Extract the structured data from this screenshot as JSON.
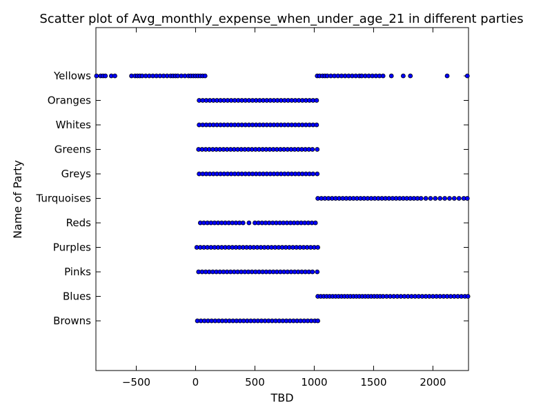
{
  "chart_data": {
    "type": "scatter",
    "title": "Scatter plot of Avg_monthly_expense_when_under_age_21 in different parties",
    "xlabel": "TBD",
    "ylabel": "Name of Party",
    "xlim": [
      -840,
      2300
    ],
    "xticks": [
      -500,
      0,
      500,
      1000,
      1500,
      2000
    ],
    "categories": [
      "Browns",
      "Blues",
      "Pinks",
      "Purples",
      "Reds",
      "Turquoises",
      "Greys",
      "Greens",
      "Whites",
      "Oranges",
      "Yellows"
    ],
    "grid": false,
    "marker_color": "#0000ff",
    "series": [
      {
        "category": "Yellows",
        "x": [
          -835,
          -800,
          -780,
          -760,
          -710,
          -680,
          -540,
          -510,
          -490,
          -470,
          -450,
          -420,
          -390,
          -360,
          -330,
          -300,
          -270,
          -240,
          -210,
          -190,
          -170,
          -150,
          -120,
          -90,
          -60,
          -40,
          -20,
          0,
          20,
          40,
          60,
          80,
          1025,
          1045,
          1070,
          1090,
          1110,
          1140,
          1170,
          1200,
          1230,
          1260,
          1290,
          1320,
          1350,
          1380,
          1400,
          1430,
          1460,
          1490,
          1520,
          1550,
          1580,
          1650,
          1750,
          1810,
          2120,
          2290
        ]
      },
      {
        "category": "Oranges",
        "x": [
          30,
          60,
          90,
          120,
          150,
          180,
          210,
          240,
          270,
          300,
          330,
          360,
          390,
          420,
          450,
          480,
          510,
          540,
          570,
          600,
          630,
          660,
          690,
          720,
          750,
          780,
          810,
          840,
          870,
          900,
          930,
          960,
          990,
          1020
        ]
      },
      {
        "category": "Whites",
        "x": [
          30,
          60,
          90,
          120,
          150,
          180,
          210,
          240,
          270,
          300,
          330,
          360,
          390,
          420,
          450,
          480,
          510,
          540,
          570,
          600,
          630,
          660,
          690,
          720,
          750,
          780,
          810,
          840,
          870,
          900,
          930,
          960,
          990,
          1020
        ]
      },
      {
        "category": "Greens",
        "x": [
          25,
          55,
          85,
          115,
          145,
          175,
          205,
          235,
          265,
          295,
          325,
          355,
          385,
          415,
          445,
          475,
          505,
          535,
          565,
          595,
          625,
          655,
          685,
          715,
          745,
          775,
          805,
          835,
          865,
          895,
          925,
          955,
          985,
          1025
        ]
      },
      {
        "category": "Greys",
        "x": [
          30,
          60,
          90,
          120,
          150,
          180,
          210,
          240,
          270,
          300,
          330,
          360,
          390,
          420,
          450,
          480,
          510,
          540,
          570,
          600,
          630,
          660,
          690,
          720,
          750,
          780,
          810,
          840,
          870,
          900,
          930,
          960,
          990,
          1025
        ]
      },
      {
        "category": "Turquoises",
        "x": [
          1030,
          1060,
          1090,
          1120,
          1150,
          1180,
          1210,
          1240,
          1270,
          1300,
          1330,
          1360,
          1390,
          1420,
          1450,
          1480,
          1510,
          1540,
          1570,
          1600,
          1630,
          1660,
          1690,
          1720,
          1750,
          1780,
          1810,
          1840,
          1870,
          1900,
          1940,
          1980,
          2020,
          2060,
          2100,
          2140,
          2180,
          2220,
          2260,
          2290
        ]
      },
      {
        "category": "Reds",
        "x": [
          40,
          70,
          100,
          130,
          160,
          190,
          220,
          250,
          280,
          310,
          340,
          370,
          400,
          450,
          500,
          530,
          560,
          590,
          620,
          650,
          680,
          710,
          740,
          770,
          800,
          830,
          860,
          890,
          920,
          950,
          980,
          1010
        ]
      },
      {
        "category": "Purples",
        "x": [
          10,
          40,
          70,
          100,
          130,
          160,
          190,
          220,
          250,
          280,
          310,
          340,
          370,
          400,
          430,
          460,
          490,
          520,
          550,
          580,
          610,
          640,
          670,
          700,
          730,
          760,
          790,
          820,
          850,
          880,
          910,
          940,
          970,
          1000,
          1030
        ]
      },
      {
        "category": "Pinks",
        "x": [
          25,
          55,
          85,
          115,
          145,
          175,
          205,
          235,
          265,
          295,
          325,
          355,
          385,
          415,
          445,
          475,
          505,
          535,
          565,
          595,
          625,
          655,
          685,
          715,
          745,
          775,
          805,
          835,
          865,
          895,
          925,
          955,
          985,
          1025
        ]
      },
      {
        "category": "Blues",
        "x": [
          1030,
          1055,
          1080,
          1105,
          1130,
          1155,
          1180,
          1205,
          1230,
          1255,
          1280,
          1305,
          1330,
          1355,
          1380,
          1405,
          1430,
          1455,
          1480,
          1505,
          1530,
          1555,
          1580,
          1610,
          1640,
          1670,
          1700,
          1730,
          1760,
          1790,
          1820,
          1850,
          1880,
          1910,
          1940,
          1970,
          2000,
          2030,
          2060,
          2090,
          2120,
          2150,
          2180,
          2210,
          2240,
          2270,
          2295
        ]
      },
      {
        "category": "Browns",
        "x": [
          15,
          45,
          75,
          105,
          135,
          165,
          195,
          225,
          255,
          285,
          315,
          345,
          375,
          405,
          435,
          465,
          495,
          525,
          555,
          585,
          615,
          645,
          675,
          705,
          735,
          765,
          795,
          825,
          855,
          885,
          915,
          945,
          975,
          1005,
          1030
        ]
      }
    ]
  }
}
